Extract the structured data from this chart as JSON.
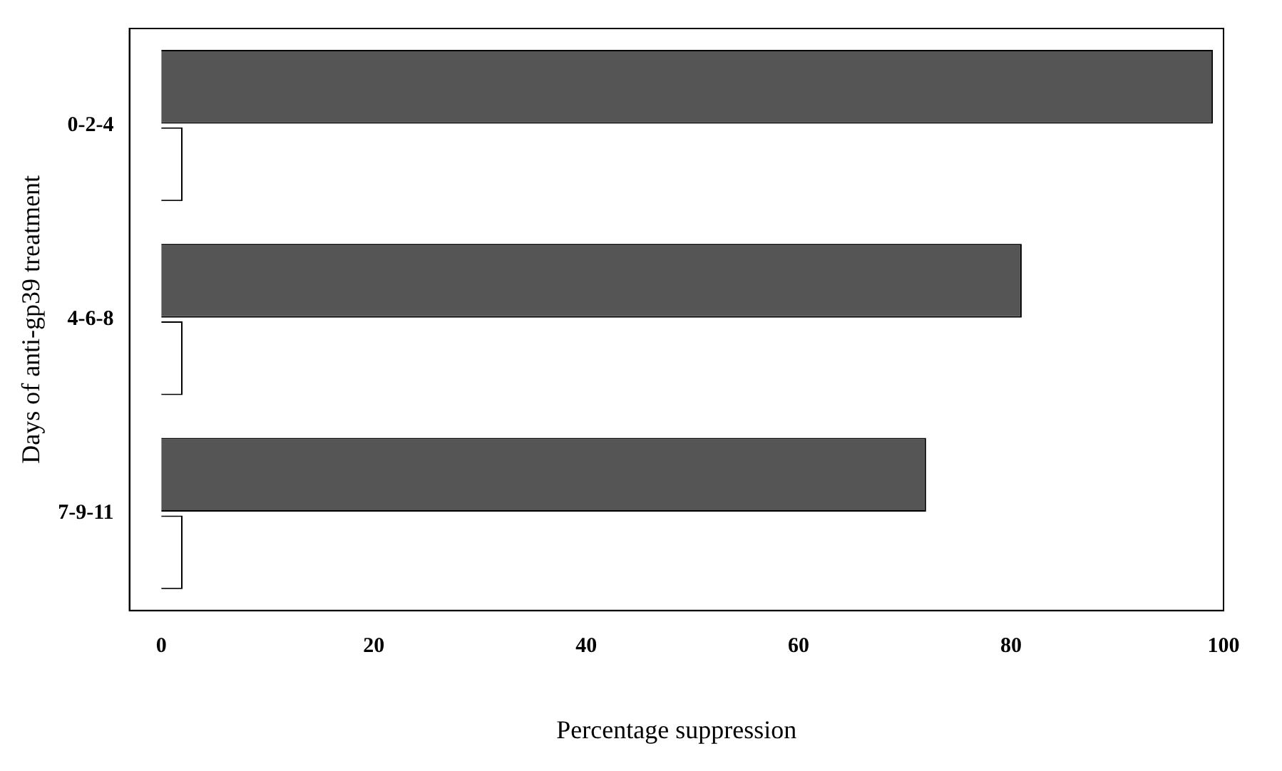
{
  "chart_data": {
    "type": "bar",
    "orientation": "horizontal",
    "xlabel": "Percentage suppression",
    "ylabel": "Days of anti-gp39 treatment",
    "categories": [
      "0-2-4",
      "4-6-8",
      "7-9-11"
    ],
    "series": [
      {
        "color": "#555555",
        "values": [
          99,
          81,
          72
        ]
      },
      {
        "color": "#ffffff",
        "values": [
          2,
          2,
          2
        ]
      }
    ],
    "xlim": [
      -3,
      100
    ],
    "xticks": [
      0,
      20,
      40,
      60,
      80,
      100
    ],
    "grid": false,
    "legend": false
  }
}
